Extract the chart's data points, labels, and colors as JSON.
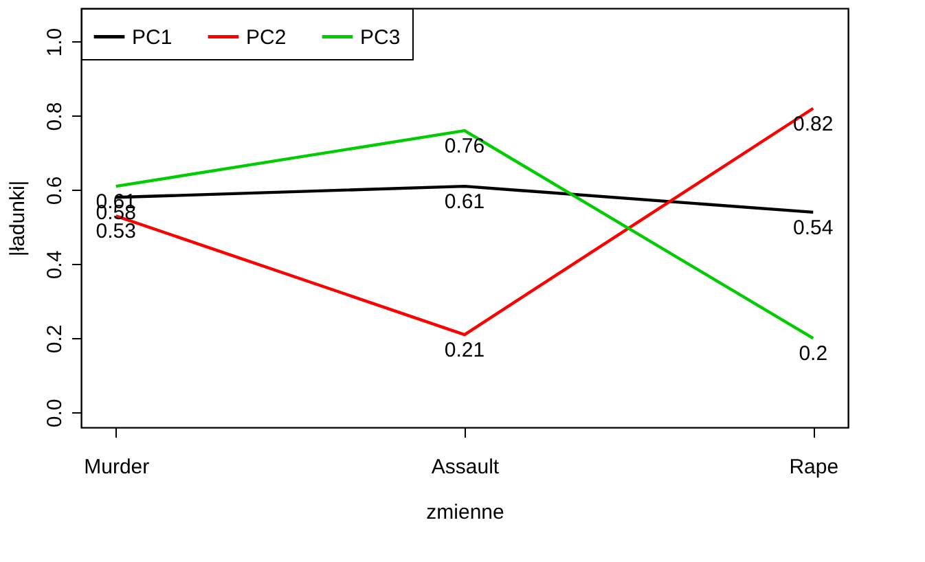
{
  "chart_data": {
    "type": "line",
    "xlabel": "zmienne",
    "ylabel": "|ładunki|",
    "categories": [
      "Murder",
      "Assault",
      "Rape"
    ],
    "series": [
      {
        "name": "PC1",
        "color": "#000000",
        "values": [
          0.58,
          0.61,
          0.54
        ]
      },
      {
        "name": "PC2",
        "color": "#ff0000",
        "values": [
          0.53,
          0.21,
          0.82
        ]
      },
      {
        "name": "PC3",
        "color": "#00cd00",
        "values": [
          0.61,
          0.76,
          0.2
        ]
      }
    ],
    "ylim": [
      -0.04,
      1.09
    ],
    "yticks": [
      {
        "value": 0,
        "label": "0.0"
      },
      0.2,
      0.4,
      0.6,
      0.8,
      {
        "value": 1,
        "label": "1.0"
      }
    ],
    "grid": false,
    "legend": "top left",
    "data_labels": true,
    "marker": "none",
    "line_style": "solid"
  }
}
